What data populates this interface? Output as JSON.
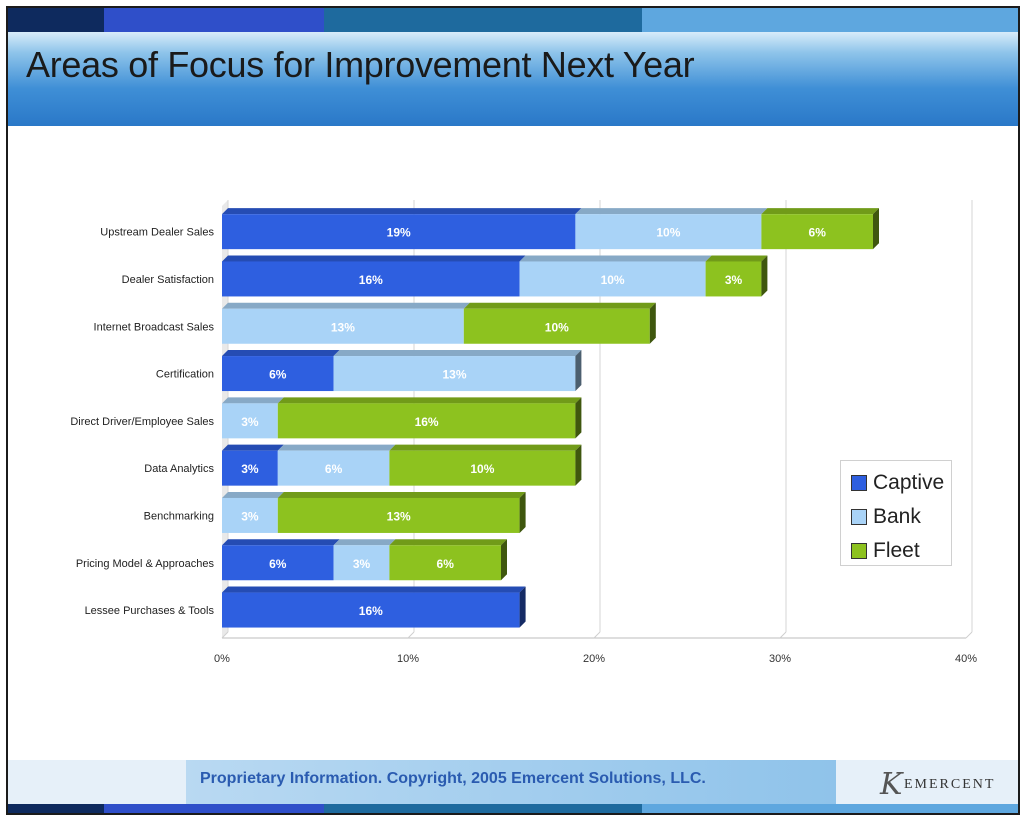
{
  "slide": {
    "title": "Areas of Focus for Improvement Next Year",
    "footer_text": "Proprietary Information. Copyright, 2005 Emercent Solutions, LLC.",
    "logo_text": "EMERCENT"
  },
  "colors": {
    "Captive": "#2e5fe0",
    "Bank": "#a9d3f7",
    "Fleet": "#8dc21f",
    "header_dark": "#2a78c8"
  },
  "chart_data": {
    "type": "bar",
    "orientation": "horizontal",
    "stacked": true,
    "categories": [
      "Upstream Dealer Sales",
      "Dealer Satisfaction",
      "Internet Broadcast Sales",
      "Certification",
      "Direct Driver/Employee Sales",
      "Data Analytics",
      "Benchmarking",
      "Pricing Model & Approaches",
      "Lessee Purchases & Tools"
    ],
    "series": [
      {
        "name": "Captive",
        "values": [
          19,
          16,
          0,
          6,
          0,
          3,
          0,
          6,
          16
        ],
        "labels": [
          "19%",
          "16%",
          "",
          "6%",
          "",
          "3%",
          "",
          "6%",
          "16%"
        ]
      },
      {
        "name": "Bank",
        "values": [
          10,
          10,
          13,
          13,
          3,
          6,
          3,
          3,
          0
        ],
        "labels": [
          "10%",
          "10%",
          "13%",
          "13%",
          "3%",
          "6%",
          "3%",
          "3%",
          ""
        ]
      },
      {
        "name": "Fleet",
        "values": [
          6,
          3,
          10,
          0,
          16,
          10,
          13,
          6,
          0
        ],
        "labels": [
          "6%",
          "3%",
          "10%",
          "",
          "16%",
          "10%",
          "13%",
          "6%",
          ""
        ]
      }
    ],
    "x_ticks": [
      "0%",
      "10%",
      "20%",
      "30%",
      "40%"
    ],
    "xlim": [
      0,
      40
    ],
    "grid": true,
    "legend": "right"
  }
}
